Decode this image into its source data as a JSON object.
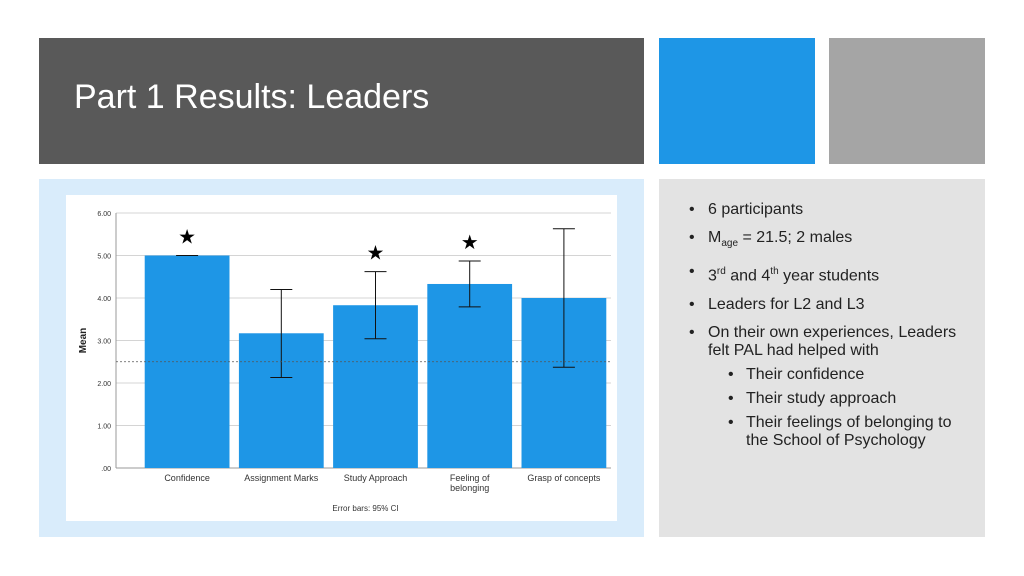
{
  "slide": {
    "title": "Part 1 Results: Leaders"
  },
  "bullets": {
    "participants": "6 participants",
    "age_m": "M",
    "age_sub": "age",
    "age_rest": " = 21.5; 2 males",
    "year_3": "3",
    "year_3_sup": "rd",
    "year_mid": " and 4",
    "year_4_sup": "th",
    "year_rest": " year students",
    "leaders": "Leaders for L2 and L3",
    "experiences": "On their own experiences, Leaders felt PAL had helped with",
    "sub_items": [
      "Their confidence",
      "Their study approach",
      "Their feelings of belonging to the School of Psychology"
    ]
  },
  "colors": {
    "bar": "#1e96e6",
    "title_bar": "#595959",
    "accent_blue": "#1e96e6",
    "accent_gray": "#a5a5a5"
  },
  "chart_data": {
    "type": "bar",
    "categories": [
      "Confidence",
      "Assignment Marks",
      "Study Approach",
      "Feeling of belonging",
      "Grasp of concepts"
    ],
    "category_lines": [
      [
        "Confidence"
      ],
      [
        "Assignment Marks"
      ],
      [
        "Study Approach"
      ],
      [
        "Feeling of",
        "belonging"
      ],
      [
        "Grasp of concepts"
      ]
    ],
    "values": [
      5.0,
      3.17,
      3.83,
      4.33,
      4.0
    ],
    "error_low": [
      5.0,
      2.13,
      3.04,
      3.79,
      2.37
    ],
    "error_high": [
      5.0,
      4.2,
      4.62,
      4.87,
      5.63
    ],
    "significant": [
      true,
      false,
      true,
      true,
      false
    ],
    "marker": "★",
    "reference_line": 2.5,
    "ylabel": "Mean",
    "ylim": [
      0,
      6
    ],
    "yticks": [
      0,
      1,
      2,
      3,
      4,
      5,
      6
    ],
    "ytick_labels": [
      ".00",
      "1.00",
      "2.00",
      "3.00",
      "4.00",
      "5.00",
      "6.00"
    ],
    "footnote": "Error bars: 95% CI",
    "grid": true
  }
}
